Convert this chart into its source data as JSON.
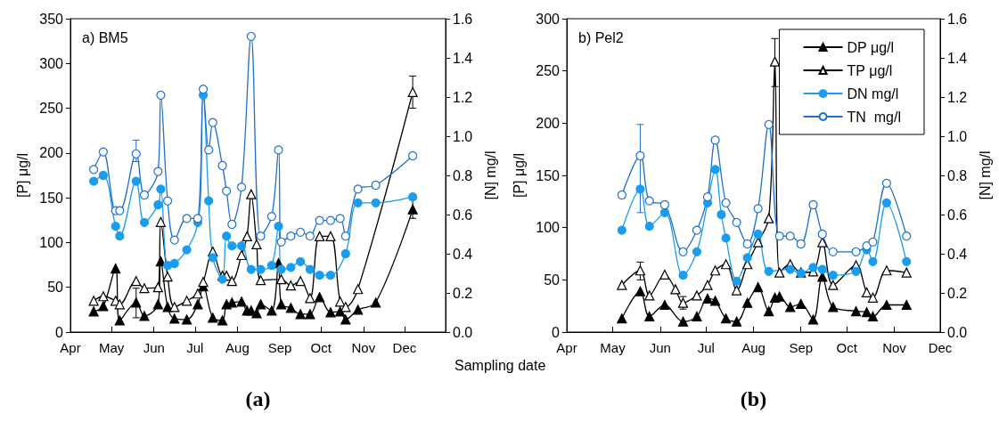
{
  "chart_data": [
    {
      "type": "line",
      "title": "a) BM5",
      "xlabel": "Sampling date",
      "ylabel": "[P] μg/l",
      "y2label": "[N] mg/l",
      "annotations": [
        "(a)"
      ],
      "xlim": [
        "--04-01",
        "--12-31"
      ],
      "xticks": [
        {
          "value": "--04-01",
          "label": "Apr"
        },
        {
          "value": "--05-01",
          "label": "May"
        },
        {
          "value": "--06-01",
          "label": "Jun"
        },
        {
          "value": "--07-01",
          "label": "Jul"
        },
        {
          "value": "--08-01",
          "label": "Aug"
        },
        {
          "value": "--09-01",
          "label": "Sep"
        },
        {
          "value": "--10-01",
          "label": "Oct"
        },
        {
          "value": "--11-01",
          "label": "Nov"
        },
        {
          "value": "--12-01",
          "label": "Dec"
        }
      ],
      "ylim": [
        0,
        350
      ],
      "yticks": [
        0,
        50,
        100,
        150,
        200,
        250,
        300,
        350
      ],
      "y2lim": [
        0,
        1.6
      ],
      "y2ticks": [
        {
          "value": 0,
          "label": "0.0"
        },
        {
          "value": 0.2,
          "label": "0.2"
        },
        {
          "value": 0.4,
          "label": "0.4"
        },
        {
          "value": 0.6,
          "label": "0.6"
        },
        {
          "value": 0.8,
          "label": "0.8"
        },
        {
          "value": 1,
          "label": "1.0"
        },
        {
          "value": 1.2,
          "label": "1.2"
        },
        {
          "value": 1.4,
          "label": "1.4"
        },
        {
          "value": 1.6,
          "label": "1.6"
        }
      ],
      "legend": false,
      "series": [
        {
          "color": "#000000",
          "marker": "triangle",
          "x": [
            "--04-18",
            "--04-25",
            "--05-04",
            "--05-07",
            "--05-19",
            "--05-25",
            "--06-04",
            "--06-06",
            "--06-11",
            "--06-16",
            "--06-25",
            "--07-03",
            "--07-07",
            "--07-14",
            "--07-21",
            "--07-24",
            "--07-28",
            "--08-04",
            "--08-08",
            "--08-11",
            "--08-15",
            "--08-18",
            "--08-26",
            "--08-31",
            "--09-02",
            "--09-09",
            "--09-16",
            "--09-23",
            "--09-30",
            "--10-08",
            "--10-15",
            "--10-19",
            "--10-28",
            "--11-10",
            "--12-07"
          ],
          "values": [
            23,
            29,
            71,
            13,
            33,
            18,
            31,
            79,
            28,
            15,
            14,
            31,
            51,
            16,
            13,
            31,
            33,
            34,
            24,
            24,
            21,
            31,
            24,
            77,
            31,
            27,
            20,
            20,
            39,
            22,
            23,
            14,
            25,
            33,
            137
          ],
          "errors": [
            null,
            null,
            null,
            null,
            [
              16,
              49
            ],
            null,
            null,
            null,
            null,
            null,
            null,
            null,
            null,
            null,
            null,
            null,
            null,
            null,
            null,
            null,
            null,
            null,
            null,
            null,
            null,
            null,
            null,
            null,
            null,
            null,
            null,
            null,
            null,
            null,
            [
              127,
              148
            ]
          ]
        },
        {
          "color": "#000000",
          "marker": "triangle",
          "colors": [
            "#ffffff",
            "#ffffff",
            "#ffffff",
            "#ffffff",
            "#ffffff",
            "#ffffff",
            "#ffffff",
            "#ffffff",
            "#ffffff",
            "#ffffff",
            "#ffffff",
            "#ffffff",
            "#ffffff",
            "#ffffff",
            "#ffffff",
            "#ffffff",
            "#ffffff",
            "#ffffff",
            "#ffffff",
            "#ffffff",
            "#ffffff",
            "#ffffff",
            "#ffffff",
            "#ffffff",
            "#ffffff",
            "#ffffff",
            "#ffffff",
            "#ffffff",
            "#ffffff",
            "#ffffff",
            "#ffffff",
            "#ffffff"
          ],
          "x": [
            "--04-18",
            "--04-25",
            "--05-04",
            "--05-07",
            "--05-19",
            "--05-25",
            "--06-04",
            "--06-06",
            "--06-11",
            "--06-16",
            "--06-25",
            "--07-03",
            "--07-07",
            "--07-14",
            "--07-21",
            "--07-24",
            "--07-28",
            "--08-04",
            "--08-08",
            "--08-11",
            "--08-15",
            "--08-18",
            "--09-02",
            "--09-09",
            "--09-16",
            "--09-23",
            "--09-30",
            "--10-08",
            "--10-15",
            "--10-19",
            "--10-28",
            "--12-07"
          ],
          "values": [
            35,
            40,
            35,
            31,
            57,
            49,
            50,
            123,
            62,
            28,
            35,
            43,
            56,
            90,
            63,
            63,
            57,
            86,
            107,
            154,
            98,
            58,
            59,
            52,
            57,
            38,
            107,
            107,
            34,
            28,
            48,
            268
          ],
          "errors": [
            null,
            null,
            null,
            null,
            null,
            null,
            null,
            null,
            null,
            null,
            null,
            null,
            null,
            null,
            null,
            null,
            null,
            null,
            null,
            null,
            null,
            null,
            null,
            null,
            null,
            null,
            null,
            null,
            null,
            null,
            null,
            [
              250,
              286
            ]
          ]
        },
        {
          "color": "#1a9cf0",
          "marker": "circle",
          "axis": "y2",
          "x": [
            "--04-18",
            "--04-25",
            "--05-04",
            "--05-07",
            "--05-19",
            "--05-25",
            "--06-04",
            "--06-06",
            "--06-11",
            "--06-16",
            "--06-25",
            "--07-03",
            "--07-07",
            "--07-11",
            "--07-14",
            "--07-21",
            "--07-24",
            "--07-28",
            "--08-04",
            "--08-11",
            "--08-18",
            "--08-26",
            "--08-31",
            "--09-02",
            "--09-09",
            "--09-16",
            "--09-23",
            "--09-30",
            "--10-08",
            "--10-19",
            "--10-28",
            "--11-10",
            "--12-07"
          ],
          "values": [
            0.77,
            0.8,
            0.54,
            0.49,
            0.77,
            0.56,
            0.65,
            0.73,
            0.34,
            0.35,
            0.42,
            0.56,
            1.21,
            0.67,
            0.38,
            0.27,
            0.49,
            0.44,
            0.44,
            0.32,
            0.32,
            0.34,
            0.54,
            0.32,
            0.33,
            0.36,
            0.32,
            0.29,
            0.29,
            0.4,
            0.66,
            0.66,
            0.69
          ]
        },
        {
          "color": "#1f6fd1",
          "marker": "circle",
          "colors": [
            "#ffffff",
            "#ffffff",
            "#ffffff",
            "#ffffff",
            "#ffffff",
            "#ffffff",
            "#ffffff",
            "#ffffff",
            "#ffffff",
            "#ffffff",
            "#ffffff",
            "#ffffff",
            "#ffffff",
            "#ffffff",
            "#ffffff",
            "#ffffff",
            "#ffffff",
            "#ffffff",
            "#ffffff",
            "#ffffff",
            "#ffffff",
            "#ffffff",
            "#ffffff",
            "#ffffff",
            "#ffffff",
            "#ffffff",
            "#ffffff",
            "#ffffff",
            "#ffffff",
            "#ffffff",
            "#ffffff",
            "#ffffff",
            "#ffffff",
            "#ffffff"
          ],
          "axis": "y2",
          "x": [
            "--04-18",
            "--04-25",
            "--05-04",
            "--05-07",
            "--05-19",
            "--05-25",
            "--06-04",
            "--06-06",
            "--06-11",
            "--06-16",
            "--06-25",
            "--07-03",
            "--07-07",
            "--07-11",
            "--07-14",
            "--07-21",
            "--07-24",
            "--07-28",
            "--08-04",
            "--08-11",
            "--08-18",
            "--08-26",
            "--08-31",
            "--09-02",
            "--09-09",
            "--09-16",
            "--09-23",
            "--09-30",
            "--10-08",
            "--10-15",
            "--10-19",
            "--10-28",
            "--11-10",
            "--12-07"
          ],
          "values": [
            0.83,
            0.92,
            0.62,
            0.62,
            0.91,
            0.7,
            0.82,
            1.21,
            0.67,
            0.47,
            0.58,
            0.58,
            1.24,
            0.93,
            1.07,
            0.85,
            0.72,
            0.55,
            0.74,
            1.51,
            0.49,
            0.59,
            0.93,
            0.46,
            0.49,
            0.51,
            0.49,
            0.57,
            0.57,
            0.58,
            0.49,
            0.73,
            0.75,
            0.9
          ],
          "errors": [
            null,
            null,
            null,
            null,
            [
              0.87,
              0.98
            ],
            null,
            null,
            null,
            null,
            null,
            null,
            null,
            null,
            null,
            null,
            null,
            null,
            null,
            null,
            null,
            null,
            null,
            null,
            null,
            null,
            null,
            null,
            null,
            null,
            null,
            null,
            null,
            null,
            null
          ]
        }
      ]
    },
    {
      "type": "line",
      "title": "b) Pel2",
      "ylabel": "[P] μg/l",
      "y2label": "[N] mg/l",
      "annotations": [
        "(b)"
      ],
      "xlim": [
        "--04-01",
        "--12-01"
      ],
      "xticks": [
        {
          "value": "--04-01",
          "label": "Apr"
        },
        {
          "value": "--05-01",
          "label": "May"
        },
        {
          "value": "--06-01",
          "label": "Jun"
        },
        {
          "value": "--07-01",
          "label": "Jul"
        },
        {
          "value": "--08-01",
          "label": "Aug"
        },
        {
          "value": "--09-01",
          "label": "Sep"
        },
        {
          "value": "--10-01",
          "label": "Oct"
        },
        {
          "value": "--11-01",
          "label": "Nov"
        },
        {
          "value": "--12-01",
          "label": "Dec"
        }
      ],
      "ylim": [
        0,
        300
      ],
      "yticks": [
        0,
        50,
        100,
        150,
        200,
        250,
        300
      ],
      "y2lim": [
        0,
        1.6
      ],
      "y2ticks": [
        {
          "value": 0,
          "label": "0.0"
        },
        {
          "value": 0.2,
          "label": "0.2"
        },
        {
          "value": 0.4,
          "label": "0.4"
        },
        {
          "value": 0.6,
          "label": "0.6"
        },
        {
          "value": 0.8,
          "label": "0.8"
        },
        {
          "value": 1,
          "label": "1.0"
        },
        {
          "value": 1.2,
          "label": "1.2"
        },
        {
          "value": 1.4,
          "label": "1.4"
        },
        {
          "value": 1.6,
          "label": "1.6"
        }
      ],
      "legend": "top right",
      "series": [
        {
          "name": "DP μg/l",
          "color": "#000000",
          "marker": "triangle",
          "x": [
            "--05-07",
            "--05-19",
            "--05-25",
            "--06-04",
            "--06-16",
            "--06-25",
            "--07-02",
            "--07-07",
            "--07-14",
            "--07-21",
            "--07-28",
            "--08-04",
            "--08-11",
            "--08-15",
            "--08-18",
            "--08-25",
            "--09-01",
            "--09-09",
            "--09-15",
            "--09-22",
            "--10-07",
            "--10-14",
            "--10-18",
            "--10-27",
            "--11-09"
          ],
          "values": [
            13,
            39,
            15,
            26,
            10,
            15,
            32,
            30,
            13,
            10,
            28,
            43,
            20,
            33,
            34,
            24,
            27,
            12,
            53,
            24,
            20,
            19,
            15,
            26,
            26
          ]
        },
        {
          "name": "TP μg/l",
          "color": "#000000",
          "marker": "triangle",
          "colors": [
            "#ffffff",
            "#ffffff",
            "#ffffff",
            "#ffffff",
            "#ffffff",
            "#ffffff",
            "#ffffff",
            "#ffffff",
            "#ffffff",
            "#ffffff",
            "#ffffff",
            "#ffffff",
            "#ffffff",
            "#ffffff",
            "#ffffff",
            "#ffffff",
            "#ffffff",
            "#ffffff",
            "#ffffff",
            "#ffffff",
            "#ffffff",
            "#ffffff",
            "#ffffff",
            "#ffffff",
            "#ffffff",
            "#ffffff"
          ],
          "x": [
            "--05-07",
            "--05-19",
            "--05-25",
            "--06-04",
            "--06-11",
            "--06-16",
            "--06-25",
            "--07-02",
            "--07-07",
            "--07-14",
            "--07-21",
            "--07-28",
            "--08-04",
            "--08-11",
            "--08-15",
            "--08-18",
            "--08-25",
            "--09-01",
            "--09-09",
            "--09-15",
            "--09-22",
            "--10-07",
            "--10-14",
            "--10-18",
            "--10-27",
            "--11-09"
          ],
          "values": [
            45,
            59,
            35,
            55,
            41,
            28,
            35,
            45,
            59,
            65,
            40,
            65,
            86,
            109,
            259,
            57,
            65,
            57,
            58,
            86,
            45,
            64,
            38,
            33,
            59,
            57
          ],
          "errors": [
            null,
            [
              50,
              67
            ],
            null,
            null,
            null,
            [
              22,
              34
            ],
            null,
            null,
            null,
            null,
            null,
            null,
            null,
            null,
            [
              235,
              281
            ],
            null,
            null,
            null,
            null,
            null,
            null,
            null,
            null,
            null,
            null,
            null
          ]
        },
        {
          "name": "DN mg/l",
          "color": "#1a9cf0",
          "marker": "circle",
          "axis": "y2",
          "x": [
            "--05-07",
            "--05-19",
            "--05-25",
            "--06-04",
            "--06-16",
            "--06-25",
            "--07-02",
            "--07-07",
            "--07-11",
            "--07-14",
            "--07-21",
            "--07-28",
            "--08-04",
            "--08-11",
            "--08-25",
            "--09-01",
            "--09-09",
            "--09-15",
            "--09-22",
            "--10-07",
            "--10-14",
            "--10-18",
            "--10-27",
            "--11-09"
          ],
          "values": [
            0.52,
            0.73,
            0.54,
            0.61,
            0.29,
            0.41,
            0.66,
            0.83,
            0.6,
            0.48,
            0.26,
            0.38,
            0.5,
            0.31,
            0.32,
            0.3,
            0.33,
            0.32,
            0.29,
            0.31,
            0.42,
            0.36,
            0.66,
            0.36
          ]
        },
        {
          "name": "TN  mg/l",
          "color": "#1f6fd1",
          "marker": "circle",
          "colors": [
            "#ffffff",
            "#ffffff",
            "#ffffff",
            "#ffffff",
            "#ffffff",
            "#ffffff",
            "#ffffff",
            "#ffffff",
            "#ffffff",
            "#ffffff",
            "#ffffff",
            "#ffffff",
            "#ffffff",
            "#ffffff",
            "#ffffff",
            "#ffffff",
            "#ffffff",
            "#ffffff",
            "#ffffff",
            "#ffffff",
            "#ffffff",
            "#ffffff",
            "#ffffff",
            "#ffffff"
          ],
          "axis": "y2",
          "x": [
            "--05-07",
            "--05-19",
            "--05-25",
            "--06-04",
            "--06-16",
            "--06-25",
            "--07-02",
            "--07-07",
            "--07-14",
            "--07-21",
            "--07-28",
            "--08-04",
            "--08-11",
            "--08-18",
            "--08-25",
            "--09-01",
            "--09-09",
            "--09-15",
            "--09-22",
            "--10-07",
            "--10-14",
            "--10-18",
            "--10-27",
            "--11-09"
          ],
          "values": [
            0.7,
            0.9,
            0.67,
            0.65,
            0.41,
            0.52,
            0.69,
            0.98,
            0.66,
            0.56,
            0.45,
            0.63,
            1.06,
            0.49,
            0.49,
            0.45,
            0.65,
            0.5,
            0.41,
            0.41,
            0.44,
            0.46,
            0.76,
            0.49
          ],
          "errors": [
            null,
            [
              0.61,
              1.06
            ],
            null,
            null,
            null,
            null,
            null,
            null,
            null,
            null,
            null,
            null,
            null,
            null,
            null,
            null,
            null,
            null,
            null,
            null,
            null,
            null,
            null,
            null
          ]
        }
      ]
    }
  ]
}
